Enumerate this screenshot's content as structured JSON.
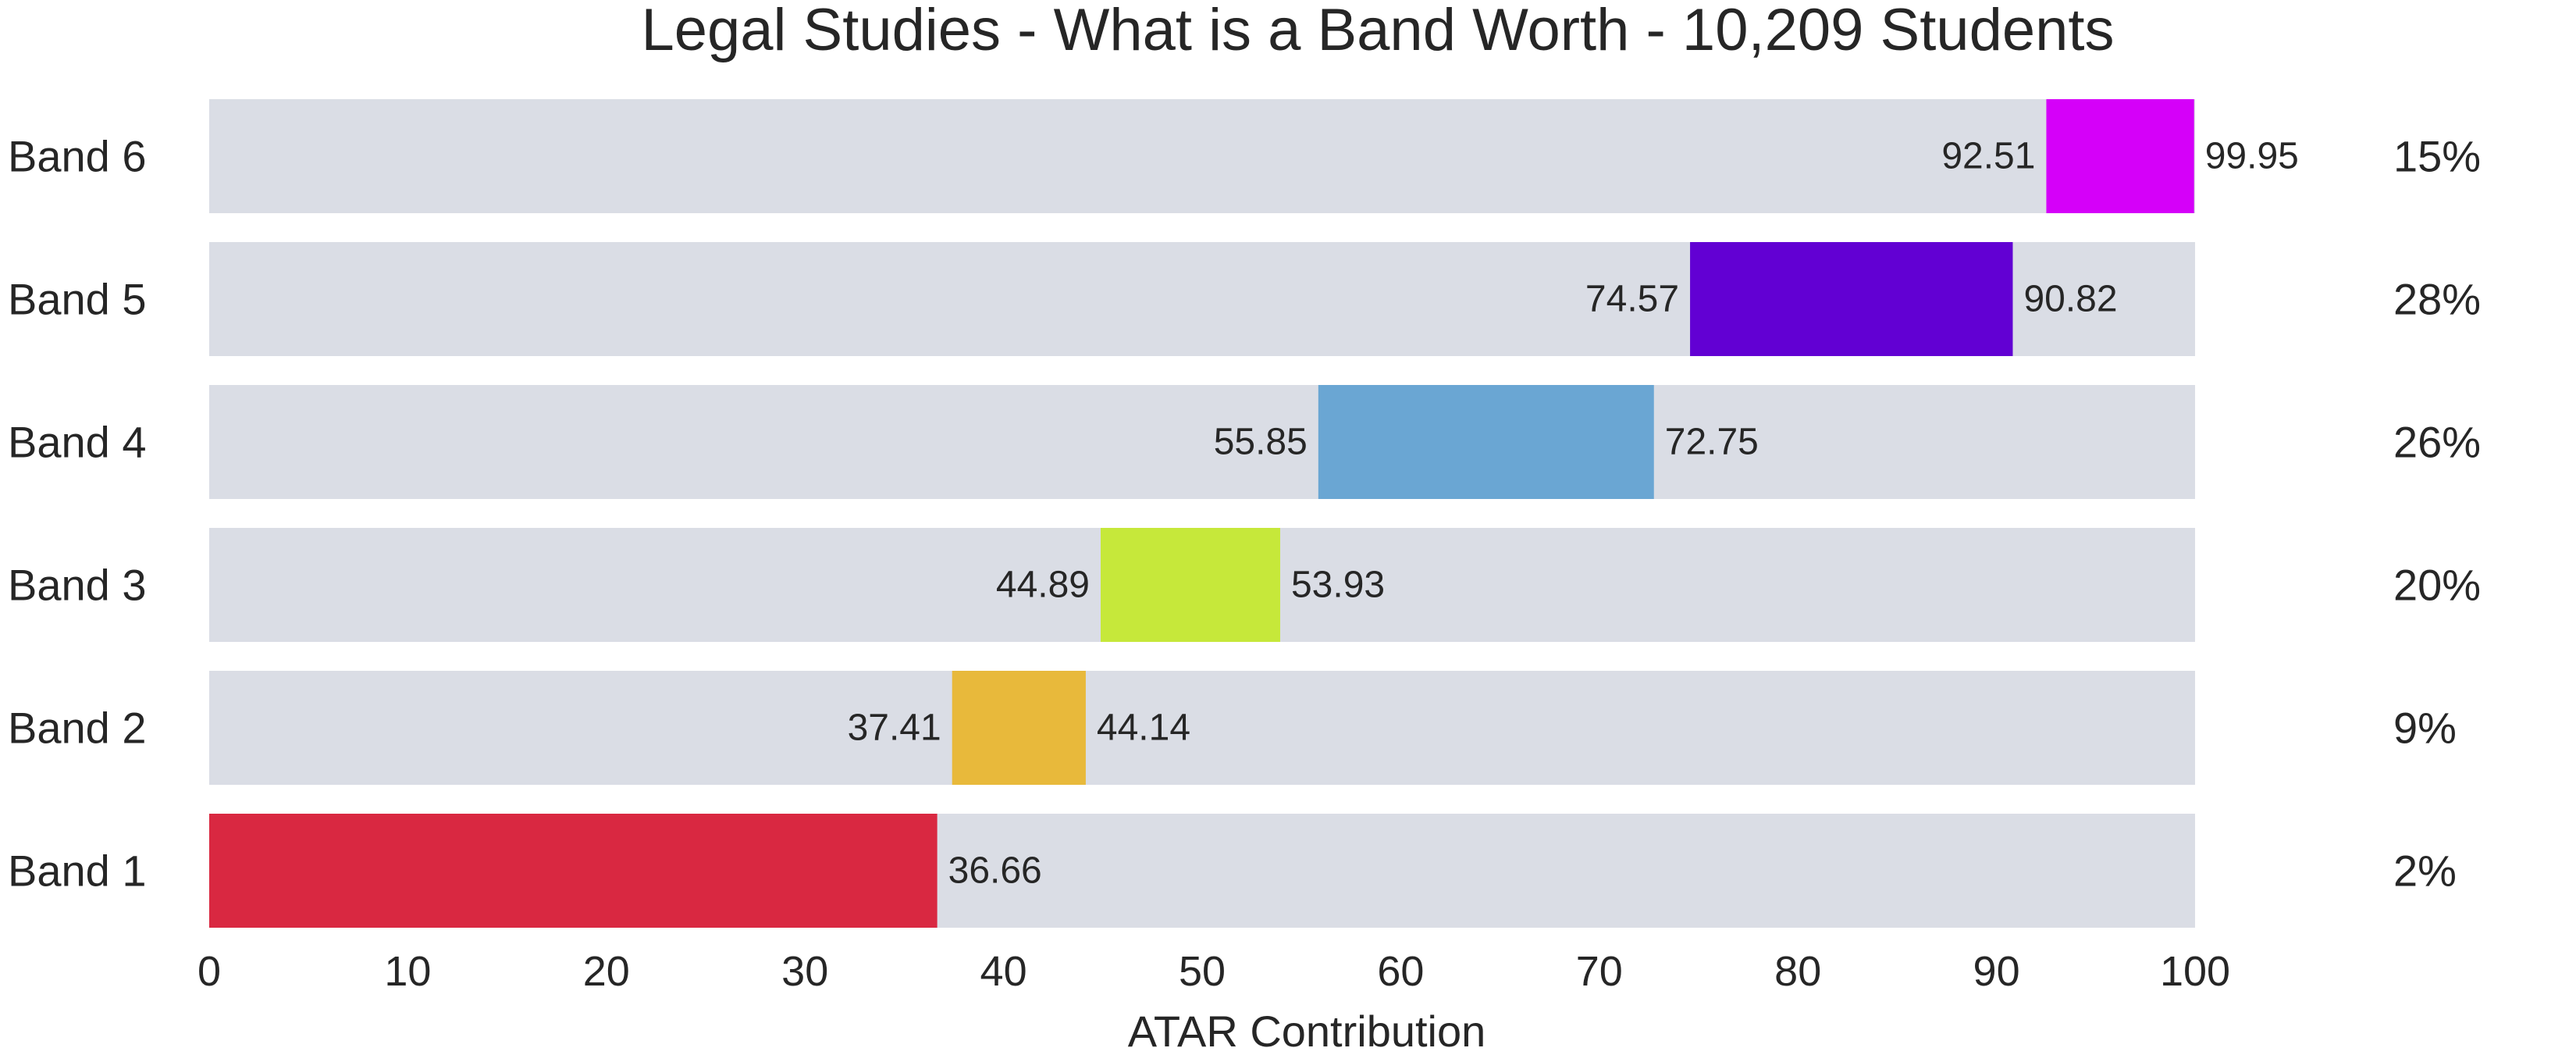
{
  "chart_data": {
    "type": "bar",
    "orientation": "horizontal-range",
    "title": "Legal Studies - What is a Band Worth - 10,209 Students",
    "xlabel": "ATAR Contribution",
    "ylabel": "",
    "xlim": [
      0,
      100
    ],
    "xticks": [
      "0",
      "10",
      "20",
      "30",
      "40",
      "50",
      "60",
      "70",
      "80",
      "90",
      "100"
    ],
    "grid": false,
    "legend": "none",
    "track_color": "#dadde5",
    "bands": [
      {
        "label": "Band 6",
        "start": 92.51,
        "end": 99.95,
        "start_label": "92.51",
        "end_label": "99.95",
        "pct": "15%",
        "color": "#d500f9"
      },
      {
        "label": "Band 5",
        "start": 74.57,
        "end": 90.82,
        "start_label": "74.57",
        "end_label": "90.82",
        "pct": "28%",
        "color": "#6200d3"
      },
      {
        "label": "Band 4",
        "start": 55.85,
        "end": 72.75,
        "start_label": "55.85",
        "end_label": "72.75",
        "pct": "26%",
        "color": "#6aa6d3"
      },
      {
        "label": "Band 3",
        "start": 44.89,
        "end": 53.93,
        "start_label": "44.89",
        "end_label": "53.93",
        "pct": "20%",
        "color": "#c6e83a"
      },
      {
        "label": "Band 2",
        "start": 37.41,
        "end": 44.14,
        "start_label": "37.41",
        "end_label": "44.14",
        "pct": "9%",
        "color": "#e8b93b"
      },
      {
        "label": "Band 1",
        "start": 0,
        "end": 36.66,
        "start_label": "",
        "end_label": "36.66",
        "pct": "2%",
        "color": "#d92841"
      }
    ]
  }
}
